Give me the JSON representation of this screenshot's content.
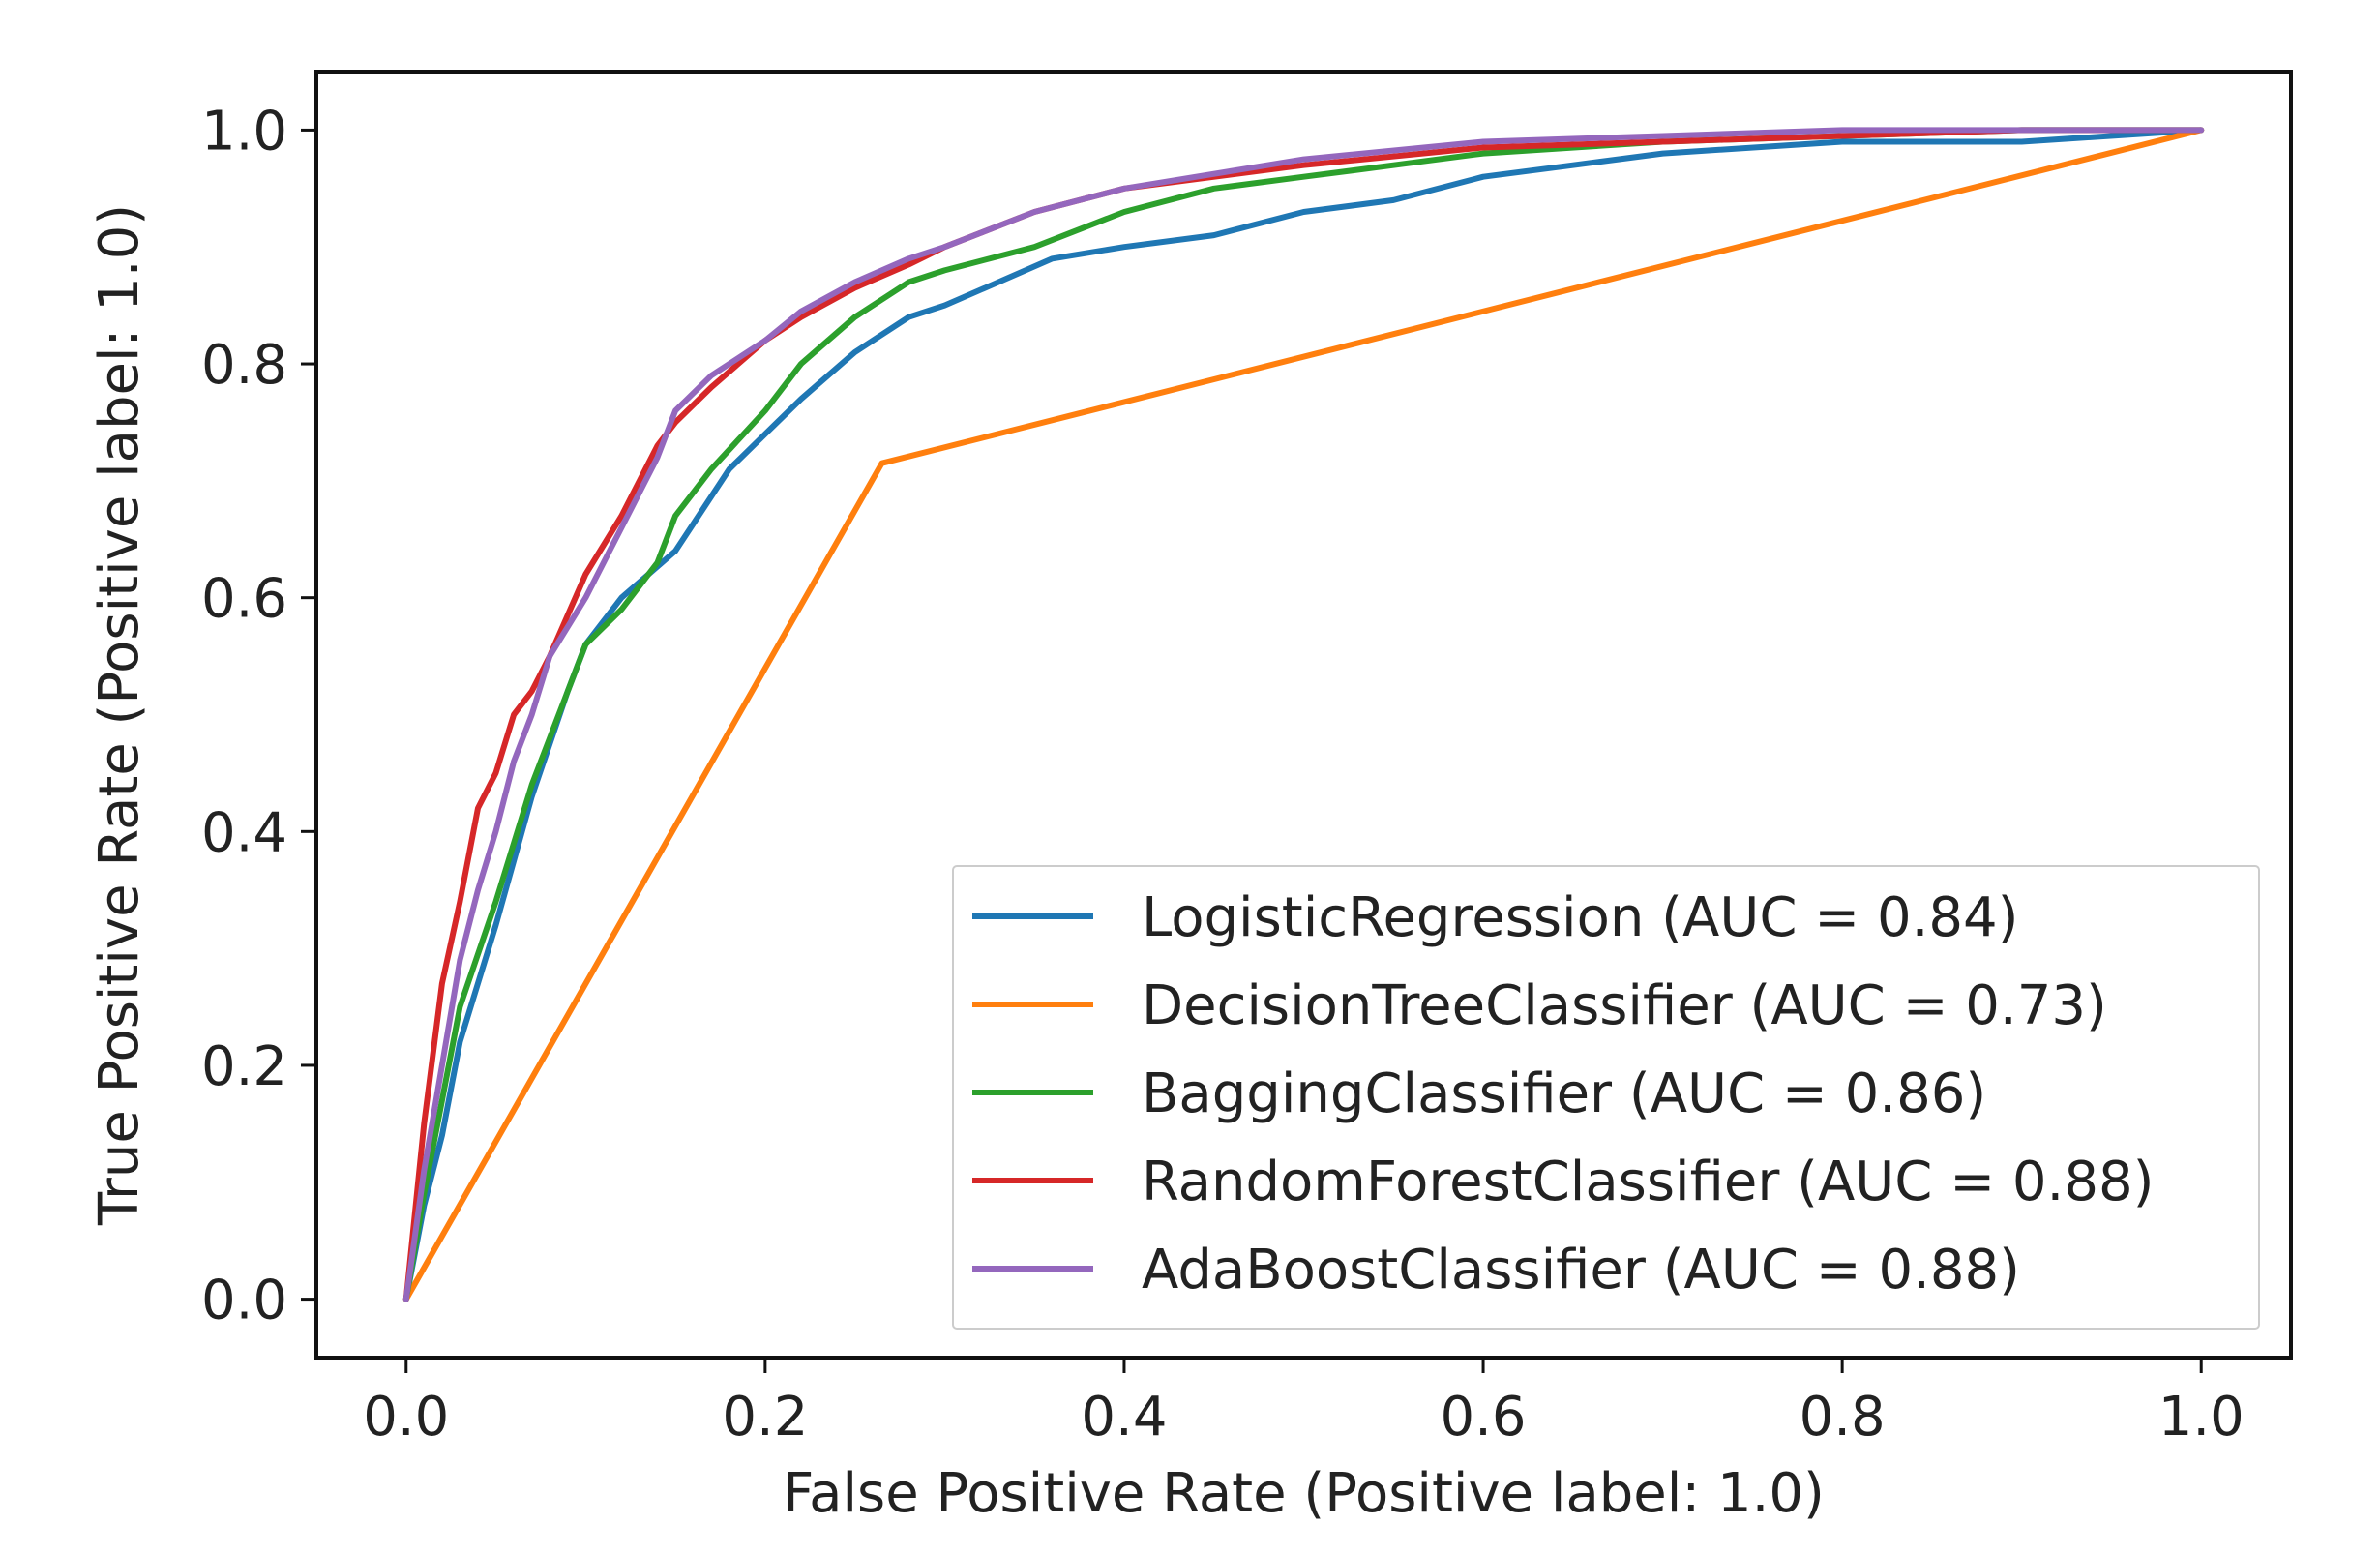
{
  "chart_data": {
    "type": "line",
    "title": "",
    "xlabel": "False Positive Rate (Positive label: 1.0)",
    "ylabel": "True Positive Rate (Positive label: 1.0)",
    "xlim": [
      -0.05,
      1.05
    ],
    "ylim": [
      -0.05,
      1.05
    ],
    "x_ticks": [
      0.0,
      0.2,
      0.4,
      0.6,
      0.8,
      1.0
    ],
    "x_tick_labels": [
      "0.0",
      "0.2",
      "0.4",
      "0.6",
      "0.8",
      "1.0"
    ],
    "y_ticks": [
      0.0,
      0.2,
      0.4,
      0.6,
      0.8,
      1.0
    ],
    "y_tick_labels": [
      "0.0",
      "0.2",
      "0.4",
      "0.6",
      "0.8",
      "1.0"
    ],
    "grid": false,
    "legend_position": "lower-right",
    "series": [
      {
        "name": "LogisticRegression (AUC = 0.84)",
        "color": "#1f77b4",
        "x": [
          0.0,
          0.01,
          0.02,
          0.03,
          0.05,
          0.07,
          0.09,
          0.1,
          0.12,
          0.15,
          0.18,
          0.2,
          0.22,
          0.25,
          0.28,
          0.3,
          0.33,
          0.36,
          0.4,
          0.45,
          0.5,
          0.55,
          0.6,
          0.65,
          0.7,
          0.8,
          0.9,
          1.0
        ],
        "y": [
          0.0,
          0.08,
          0.14,
          0.22,
          0.32,
          0.43,
          0.52,
          0.56,
          0.6,
          0.64,
          0.71,
          0.74,
          0.77,
          0.81,
          0.84,
          0.85,
          0.87,
          0.89,
          0.9,
          0.91,
          0.93,
          0.94,
          0.96,
          0.97,
          0.98,
          0.99,
          0.99,
          1.0
        ]
      },
      {
        "name": "DecisionTreeClassifier (AUC = 0.73)",
        "color": "#ff7f0e",
        "x": [
          0.0,
          0.265,
          1.0
        ],
        "y": [
          0.0,
          0.715,
          1.0
        ]
      },
      {
        "name": "BaggingClassifier (AUC = 0.86)",
        "color": "#2ca02c",
        "x": [
          0.0,
          0.01,
          0.02,
          0.03,
          0.05,
          0.07,
          0.09,
          0.1,
          0.12,
          0.14,
          0.15,
          0.17,
          0.2,
          0.22,
          0.25,
          0.28,
          0.3,
          0.35,
          0.4,
          0.45,
          0.5,
          0.55,
          0.6,
          0.7,
          0.8,
          0.9,
          1.0
        ],
        "y": [
          0.0,
          0.09,
          0.17,
          0.25,
          0.34,
          0.44,
          0.52,
          0.56,
          0.59,
          0.63,
          0.67,
          0.71,
          0.76,
          0.8,
          0.84,
          0.87,
          0.88,
          0.9,
          0.93,
          0.95,
          0.96,
          0.97,
          0.98,
          0.99,
          0.995,
          1.0,
          1.0
        ]
      },
      {
        "name": "RandomForestClassifier (AUC = 0.88)",
        "color": "#d62728",
        "x": [
          0.0,
          0.01,
          0.02,
          0.03,
          0.04,
          0.05,
          0.06,
          0.07,
          0.08,
          0.1,
          0.12,
          0.14,
          0.15,
          0.17,
          0.2,
          0.22,
          0.25,
          0.28,
          0.3,
          0.35,
          0.4,
          0.5,
          0.6,
          0.7,
          0.8,
          0.9,
          1.0
        ],
        "y": [
          0.0,
          0.15,
          0.27,
          0.34,
          0.42,
          0.45,
          0.5,
          0.52,
          0.55,
          0.62,
          0.67,
          0.73,
          0.75,
          0.78,
          0.82,
          0.84,
          0.865,
          0.885,
          0.9,
          0.93,
          0.95,
          0.97,
          0.985,
          0.99,
          0.995,
          1.0,
          1.0
        ]
      },
      {
        "name": "AdaBoostClassifier (AUC = 0.88)",
        "color": "#9467bd",
        "x": [
          0.0,
          0.01,
          0.02,
          0.03,
          0.04,
          0.05,
          0.06,
          0.07,
          0.08,
          0.1,
          0.12,
          0.14,
          0.15,
          0.17,
          0.2,
          0.22,
          0.25,
          0.28,
          0.3,
          0.35,
          0.4,
          0.5,
          0.6,
          0.7,
          0.8,
          0.9,
          1.0
        ],
        "y": [
          0.0,
          0.11,
          0.2,
          0.29,
          0.35,
          0.4,
          0.46,
          0.5,
          0.55,
          0.6,
          0.66,
          0.72,
          0.76,
          0.79,
          0.82,
          0.845,
          0.87,
          0.89,
          0.9,
          0.93,
          0.95,
          0.975,
          0.99,
          0.995,
          1.0,
          1.0,
          1.0
        ]
      }
    ]
  }
}
